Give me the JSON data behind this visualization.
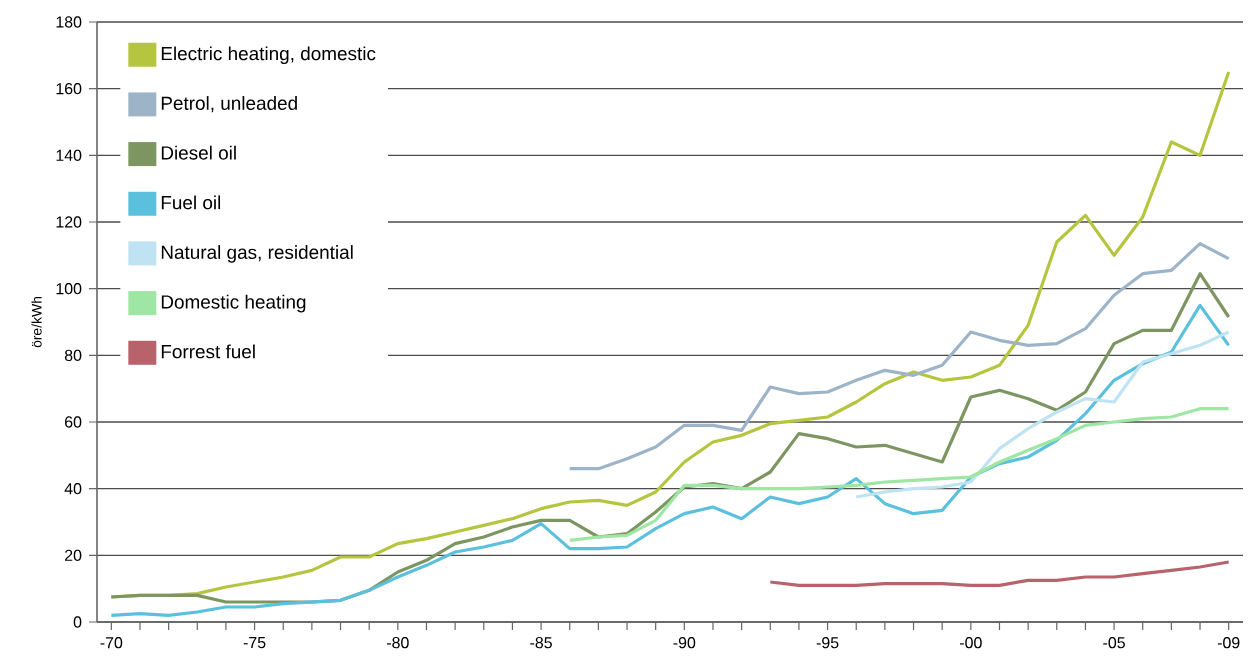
{
  "chart_data": {
    "type": "line",
    "ylabel": "öre/kWh",
    "categories": [
      "-70",
      null,
      null,
      null,
      null,
      "-75",
      null,
      null,
      null,
      null,
      "-80",
      null,
      null,
      null,
      null,
      "-85",
      null,
      null,
      null,
      null,
      "-90",
      null,
      null,
      null,
      null,
      "-95",
      null,
      null,
      null,
      null,
      "-00",
      null,
      null,
      null,
      null,
      "-05",
      null,
      null,
      null,
      "-09"
    ],
    "ylim": [
      0,
      180
    ],
    "yticks": [
      0,
      20,
      40,
      60,
      80,
      100,
      120,
      140,
      160,
      180
    ],
    "grid": "y",
    "legend": "top left",
    "marker": "none",
    "line_style": "solid",
    "series": [
      {
        "name": "Electric heating, domestic",
        "color": "#b5c53f",
        "values": [
          7.5,
          8,
          8,
          8.5,
          10.5,
          12,
          13.5,
          15.5,
          19.5,
          19.5,
          23.5,
          25,
          27,
          29,
          31,
          34,
          36,
          36.5,
          35,
          39,
          48,
          54,
          56,
          59.5,
          60.5,
          61.5,
          66,
          71.5,
          75,
          72.5,
          73.5,
          77,
          89,
          114,
          122,
          110,
          121.5,
          144,
          140,
          165
        ]
      },
      {
        "name": "Petrol, unleaded",
        "color": "#9db4c8",
        "values": [
          null,
          null,
          null,
          null,
          null,
          null,
          null,
          null,
          null,
          null,
          null,
          null,
          null,
          null,
          null,
          null,
          46,
          46,
          49,
          52.5,
          59,
          59,
          57.5,
          70.5,
          68.5,
          69,
          72.5,
          75.5,
          74,
          77,
          87,
          84.5,
          83,
          83.5,
          88,
          98,
          104.5,
          105.5,
          113.5,
          109
        ]
      },
      {
        "name": "Diesel oil",
        "color": "#7d9561",
        "values": [
          7.5,
          8,
          8,
          8,
          6,
          6,
          6,
          6,
          6.5,
          9.5,
          15,
          18.5,
          23.5,
          25.5,
          28.5,
          30.5,
          30.5,
          25.5,
          26.5,
          33,
          40.5,
          41.5,
          40,
          45,
          56.5,
          55,
          52.5,
          53,
          50.5,
          48,
          67.5,
          69.5,
          67,
          63.5,
          69,
          83.5,
          87.5,
          87.5,
          104.5,
          91.5
        ]
      },
      {
        "name": "Fuel oil",
        "color": "#5bc0de",
        "values": [
          2,
          2.5,
          2,
          3,
          4.5,
          4.5,
          5.5,
          6,
          6.5,
          9.5,
          13.5,
          17,
          21,
          22.5,
          24.5,
          29.5,
          22,
          22,
          22.5,
          28,
          32.5,
          34.5,
          31,
          37.5,
          35.5,
          37.5,
          43,
          35.5,
          32.5,
          33.5,
          43.5,
          47.5,
          49.5,
          54.5,
          62.5,
          72.5,
          77.5,
          81,
          95,
          83
        ]
      },
      {
        "name": "Natural gas, residential",
        "color": "#bfe3f2",
        "values": [
          null,
          null,
          null,
          null,
          null,
          null,
          null,
          null,
          null,
          null,
          null,
          null,
          null,
          null,
          null,
          null,
          null,
          null,
          null,
          null,
          null,
          null,
          null,
          null,
          null,
          null,
          37.5,
          39,
          40,
          40.5,
          42,
          52,
          58,
          63,
          67,
          66,
          78,
          80.5,
          83,
          87
        ]
      },
      {
        "name": "Domestic heating",
        "color": "#9ee6a3",
        "values": [
          null,
          null,
          null,
          null,
          null,
          null,
          null,
          null,
          null,
          null,
          null,
          null,
          null,
          null,
          null,
          null,
          24.5,
          25.5,
          26,
          30.5,
          41,
          41,
          40,
          40,
          40,
          40.5,
          41,
          42,
          42.5,
          43,
          43.5,
          48,
          51.5,
          55,
          59,
          60,
          61,
          61.5,
          64,
          64
        ]
      },
      {
        "name": "Forrest fuel",
        "color": "#b8626c",
        "values": [
          null,
          null,
          null,
          null,
          null,
          null,
          null,
          null,
          null,
          null,
          null,
          null,
          null,
          null,
          null,
          null,
          null,
          null,
          null,
          null,
          null,
          null,
          null,
          12,
          11,
          11,
          11,
          11.5,
          11.5,
          11.5,
          11,
          11,
          12.5,
          12.5,
          13.5,
          13.5,
          14.5,
          15.5,
          16.5,
          18
        ]
      }
    ]
  }
}
